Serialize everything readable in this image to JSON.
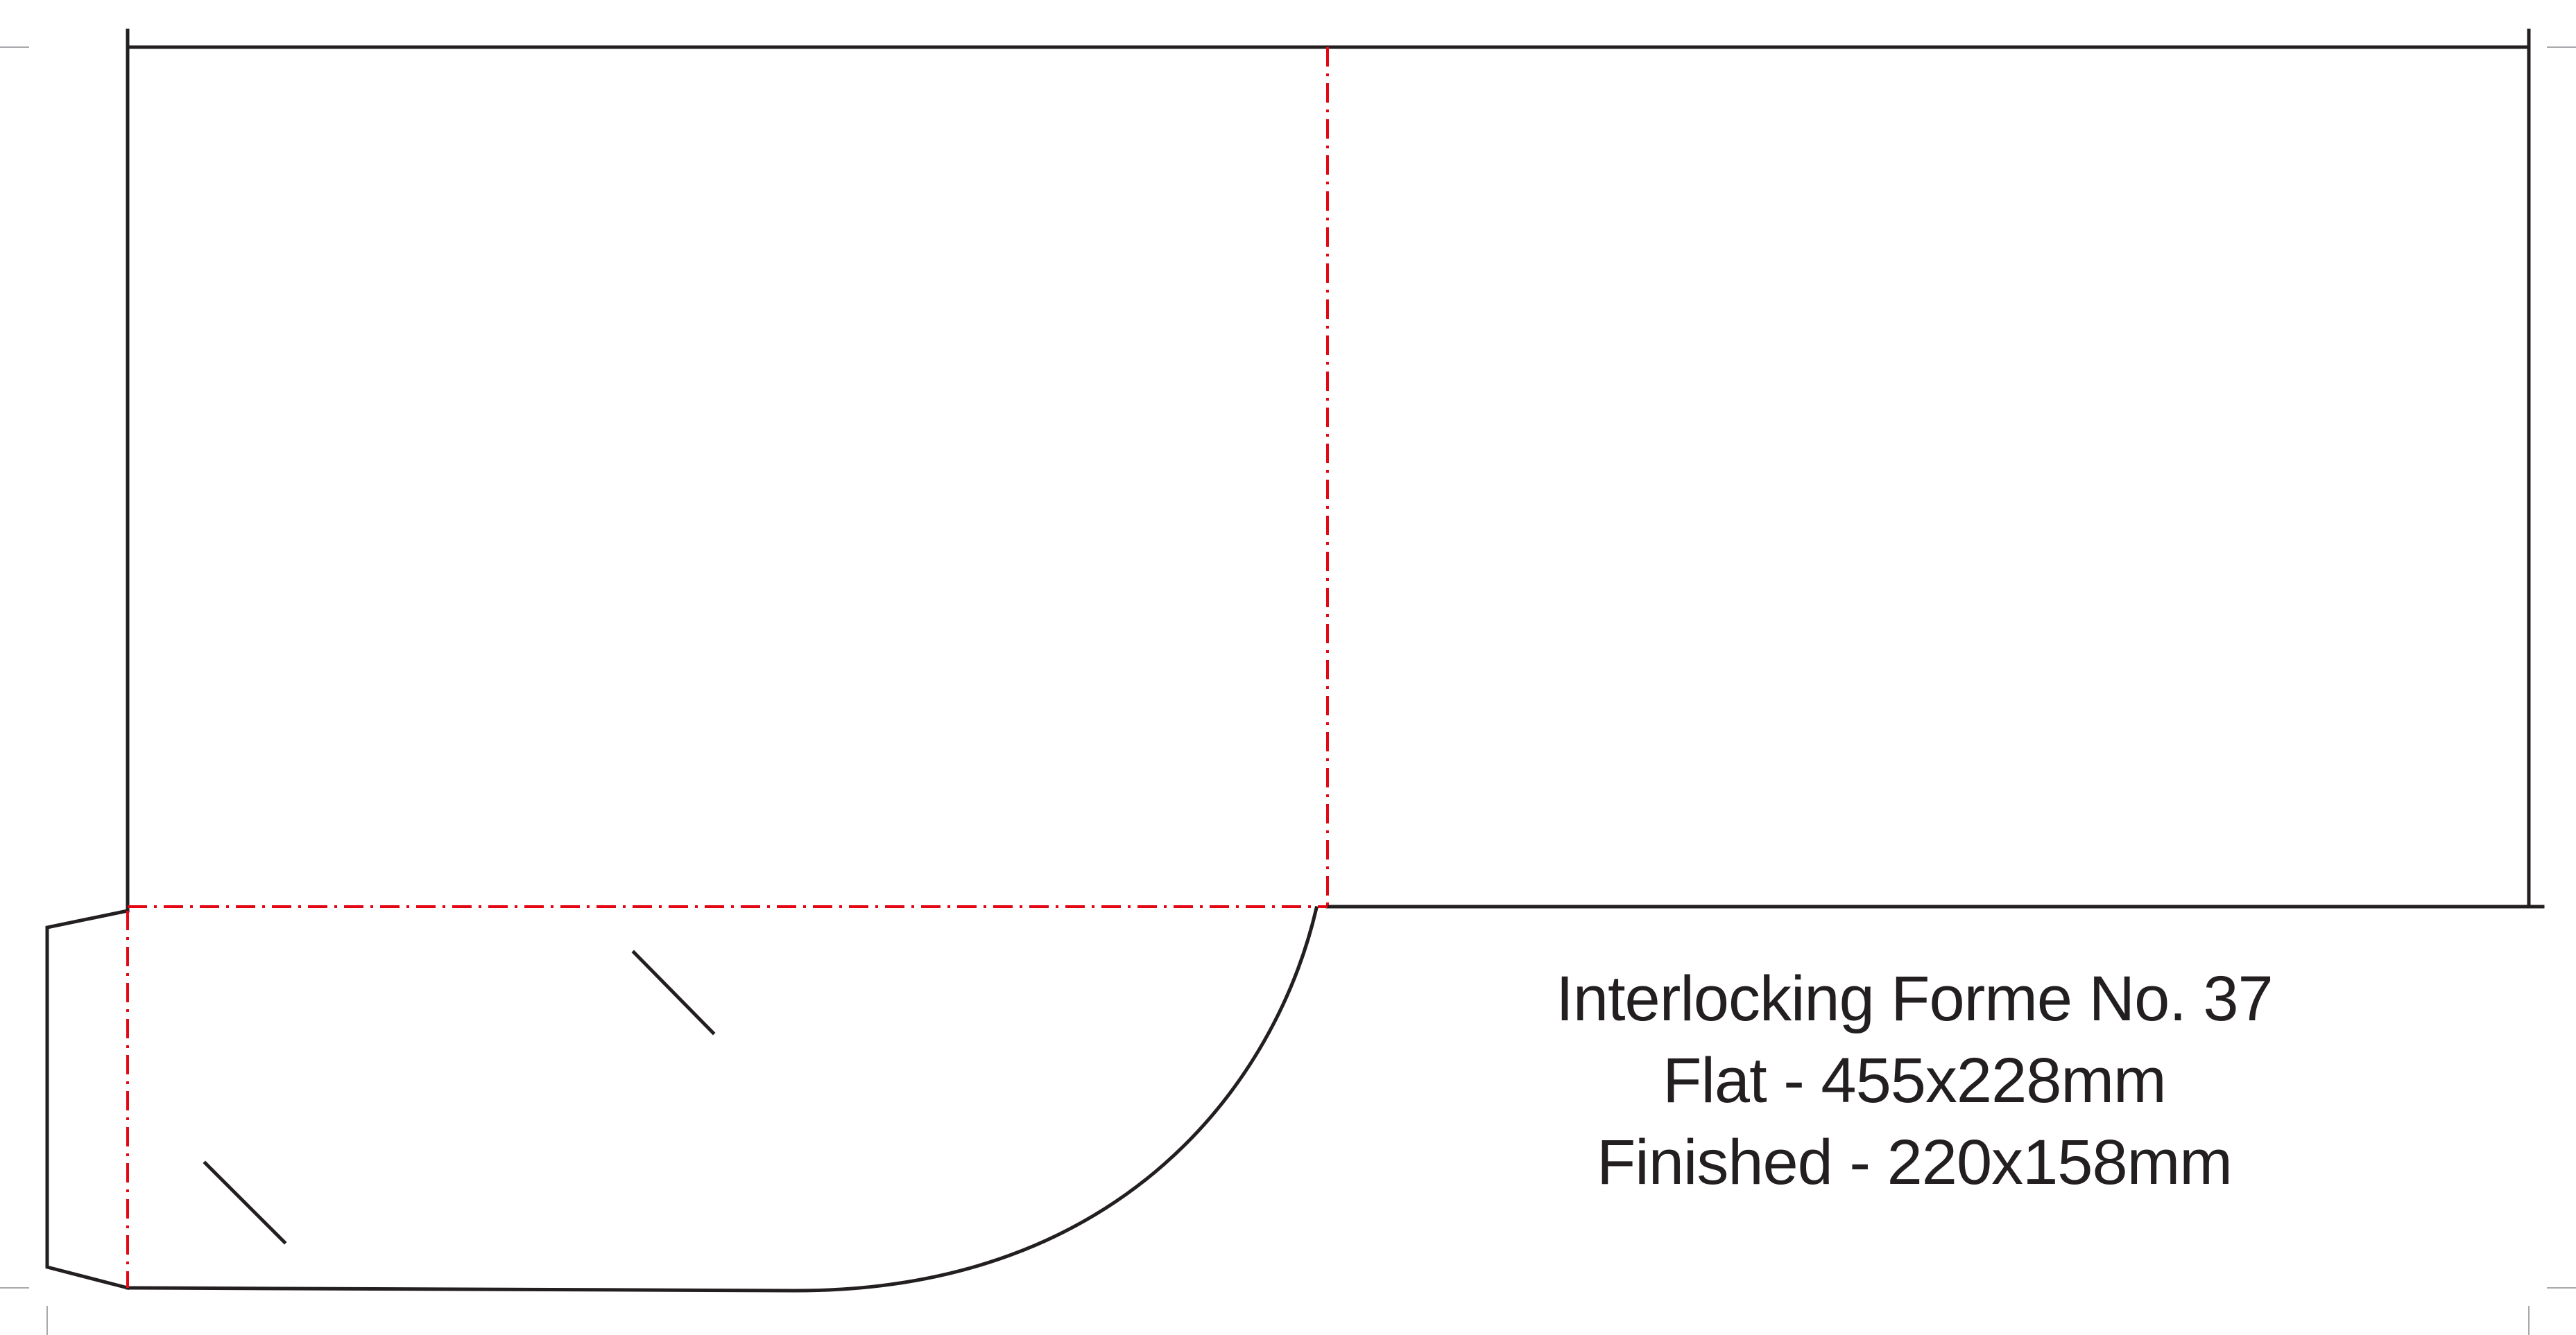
{
  "info": {
    "title": "Interlocking Forme No. 37",
    "flat": "Flat - 455x228mm",
    "finished": "Finished - 220x158mm"
  },
  "colors": {
    "cut_line": "#231f20",
    "fold_line": "#e30613",
    "crop_mark": "#a7a9ac",
    "background": "#ffffff"
  }
}
